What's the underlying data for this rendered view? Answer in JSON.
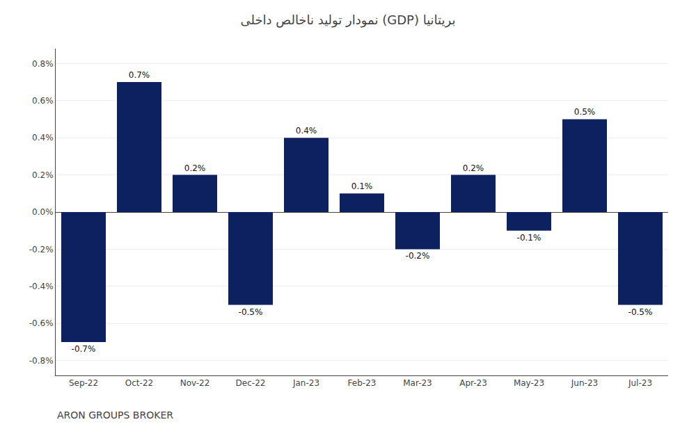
{
  "chart_data": {
    "type": "bar",
    "title": "نمودار تولید ناخالص داخلی (GDP) بریتانیا",
    "annotations": [
      "ARON GROUPS BROKER"
    ],
    "categories": [
      "Sep-22",
      "Oct-22",
      "Nov-22",
      "Dec-22",
      "Jan-23",
      "Feb-23",
      "Mar-23",
      "Apr-23",
      "May-23",
      "Jun-23",
      "Jul-23"
    ],
    "values": [
      -0.7,
      0.7,
      0.2,
      -0.5,
      0.4,
      0.1,
      -0.2,
      0.2,
      -0.1,
      0.5,
      -0.5
    ],
    "value_labels": [
      "-0.7%",
      "0.7%",
      "0.2%",
      "-0.5%",
      "0.4%",
      "0.1%",
      "-0.2%",
      "0.2%",
      "-0.1%",
      "0.5%",
      "-0.5%"
    ],
    "data_labels": true,
    "color": "#0d2060",
    "ylim": [
      -0.88,
      0.88
    ],
    "yticks": [
      {
        "value": -0.8,
        "label": "-0.8%"
      },
      {
        "value": -0.6,
        "label": "-0.6%"
      },
      {
        "value": -0.4,
        "label": "-0.4%"
      },
      {
        "value": -0.2,
        "label": "-0.2%"
      },
      {
        "value": 0.0,
        "label": "0.0%"
      },
      {
        "value": 0.2,
        "label": "0.2%"
      },
      {
        "value": 0.4,
        "label": "0.4%"
      },
      {
        "value": 0.6,
        "label": "0.6%"
      },
      {
        "value": 0.8,
        "label": "0.8%"
      }
    ],
    "grid": true
  }
}
